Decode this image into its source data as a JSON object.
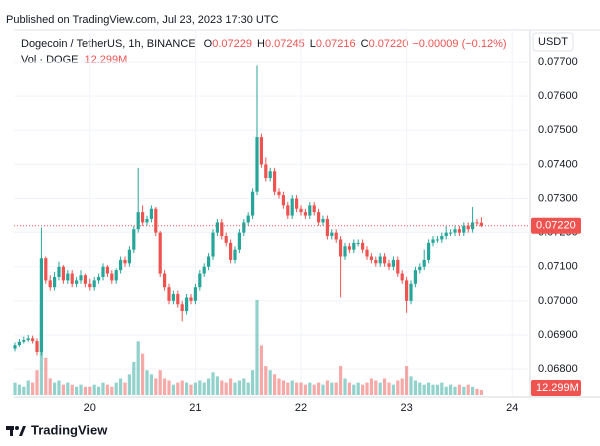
{
  "published": "Published on TradingView.com, Jul 23, 2023 17:30 UTC",
  "brand": "TradingView",
  "chart_data": {
    "type": "candlestick",
    "symbol": "Dogecoin / TetherUS, 1h, BINANCE",
    "ohlc_legend": [
      {
        "label": "O",
        "value": "0.07229"
      },
      {
        "label": "H",
        "value": "0.07245"
      },
      {
        "label": "L",
        "value": "0.07216"
      },
      {
        "label": "C",
        "value": "0.07220"
      }
    ],
    "change": "−0.00009 (−0.12%)",
    "volume_title": "Vol · DOGE",
    "volume_label": "12.299M",
    "currency": "USDT",
    "last_price_label": "0.07220",
    "up_color": "#26a69a",
    "down_color": "#ef5350",
    "open": [
      0.0686,
      0.0687,
      0.0688,
      0.06885,
      0.0689,
      0.06882,
      0.0685,
      0.07125,
      0.0706,
      0.0704,
      0.0707,
      0.071,
      0.0706,
      0.0708,
      0.0705,
      0.0706,
      0.07075,
      0.0705,
      0.0704,
      0.0706,
      0.0707,
      0.071,
      0.0708,
      0.0706,
      0.0709,
      0.0712,
      0.0711,
      0.0715,
      0.0721,
      0.0726,
      0.0723,
      0.0724,
      0.0727,
      0.072,
      0.0708,
      0.0704,
      0.07,
      0.0702,
      0.0699,
      0.0697,
      0.0701,
      0.07,
      0.0704,
      0.0708,
      0.071,
      0.0713,
      0.072,
      0.0723,
      0.0719,
      0.0717,
      0.0712,
      0.0715,
      0.072,
      0.0723,
      0.0725,
      0.0732,
      0.0748,
      0.074,
      0.0736,
      0.0738,
      0.0732,
      0.0731,
      0.0728,
      0.0725,
      0.073,
      0.0727,
      0.0726,
      0.0725,
      0.0728,
      0.0726,
      0.0723,
      0.0724,
      0.0719,
      0.072,
      0.0718,
      0.0713,
      0.0716,
      0.0715,
      0.0717,
      0.0717,
      0.0715,
      0.0713,
      0.0712,
      0.0711,
      0.0713,
      0.0711,
      0.071,
      0.0712,
      0.0708,
      0.0706,
      0.07,
      0.0705,
      0.0709,
      0.071,
      0.0712,
      0.0717,
      0.0718,
      0.0718,
      0.0719,
      0.072,
      0.072,
      0.0721,
      0.072,
      0.0722,
      0.0721,
      0.0723,
      0.07229
    ],
    "high": [
      0.06878,
      0.06888,
      0.06895,
      0.069,
      0.06898,
      0.0689,
      0.07215,
      0.0713,
      0.07075,
      0.07085,
      0.07115,
      0.07105,
      0.0709,
      0.0709,
      0.0707,
      0.0709,
      0.0708,
      0.07065,
      0.0707,
      0.0708,
      0.0711,
      0.07105,
      0.0709,
      0.07095,
      0.0713,
      0.0713,
      0.0716,
      0.0722,
      0.0739,
      0.0728,
      0.0725,
      0.0728,
      0.07275,
      0.07205,
      0.0709,
      0.0705,
      0.0703,
      0.0703,
      0.07,
      0.0702,
      0.0702,
      0.0705,
      0.0709,
      0.0711,
      0.0714,
      0.0721,
      0.0724,
      0.0724,
      0.072,
      0.0718,
      0.0716,
      0.0721,
      0.0724,
      0.0726,
      0.0733,
      0.0769,
      0.0749,
      0.0742,
      0.0739,
      0.0739,
      0.0733,
      0.0732,
      0.0729,
      0.0731,
      0.0731,
      0.0728,
      0.0727,
      0.0729,
      0.0729,
      0.0727,
      0.0725,
      0.0725,
      0.0721,
      0.0721,
      0.0719,
      0.0717,
      0.0717,
      0.0718,
      0.0718,
      0.0718,
      0.0716,
      0.0714,
      0.0713,
      0.0714,
      0.0714,
      0.0712,
      0.0713,
      0.0713,
      0.0709,
      0.0707,
      0.0706,
      0.071,
      0.0711,
      0.0715,
      0.0718,
      0.0719,
      0.0719,
      0.072,
      0.0722,
      0.0721,
      0.0722,
      0.0722,
      0.0723,
      0.0723,
      0.07275,
      0.0724,
      0.07245
    ],
    "low": [
      0.06852,
      0.06865,
      0.06875,
      0.0688,
      0.06875,
      0.0684,
      0.0684,
      0.0705,
      0.0703,
      0.0703,
      0.0706,
      0.0705,
      0.0705,
      0.0704,
      0.0704,
      0.0705,
      0.0704,
      0.0703,
      0.0703,
      0.0705,
      0.0706,
      0.0707,
      0.0705,
      0.0705,
      0.0708,
      0.071,
      0.071,
      0.0714,
      0.072,
      0.0722,
      0.0722,
      0.0723,
      0.0719,
      0.0707,
      0.0703,
      0.0699,
      0.0699,
      0.0698,
      0.0694,
      0.0696,
      0.0699,
      0.0699,
      0.0703,
      0.0707,
      0.0709,
      0.0712,
      0.0719,
      0.0718,
      0.0716,
      0.0711,
      0.0711,
      0.0714,
      0.0719,
      0.0722,
      0.0724,
      0.0731,
      0.0739,
      0.0735,
      0.0735,
      0.0731,
      0.073,
      0.0727,
      0.0724,
      0.0724,
      0.0726,
      0.0725,
      0.0724,
      0.0724,
      0.0725,
      0.0722,
      0.0722,
      0.0718,
      0.0718,
      0.0717,
      0.0701,
      0.0712,
      0.0714,
      0.0714,
      0.0716,
      0.0714,
      0.0712,
      0.0711,
      0.071,
      0.071,
      0.071,
      0.0709,
      0.0709,
      0.0707,
      0.0705,
      0.06965,
      0.0699,
      0.0704,
      0.0708,
      0.0709,
      0.0711,
      0.0716,
      0.0717,
      0.0717,
      0.0718,
      0.0719,
      0.0719,
      0.0719,
      0.0719,
      0.072,
      0.072,
      0.0722,
      0.07216
    ],
    "close": [
      0.0687,
      0.0688,
      0.06885,
      0.0689,
      0.06882,
      0.0685,
      0.07125,
      0.0706,
      0.0704,
      0.0707,
      0.071,
      0.0706,
      0.0708,
      0.0705,
      0.0706,
      0.07075,
      0.0705,
      0.0704,
      0.0706,
      0.0707,
      0.071,
      0.0708,
      0.0706,
      0.0709,
      0.0712,
      0.0711,
      0.0715,
      0.0721,
      0.0726,
      0.0723,
      0.0724,
      0.0727,
      0.072,
      0.0708,
      0.0704,
      0.07,
      0.0702,
      0.0699,
      0.0697,
      0.0701,
      0.07,
      0.0704,
      0.0708,
      0.071,
      0.0713,
      0.072,
      0.0723,
      0.0719,
      0.0717,
      0.0712,
      0.0715,
      0.072,
      0.0723,
      0.0725,
      0.0732,
      0.0748,
      0.074,
      0.0736,
      0.0738,
      0.0732,
      0.0731,
      0.0728,
      0.0725,
      0.073,
      0.0727,
      0.0726,
      0.0725,
      0.0728,
      0.0726,
      0.0723,
      0.0724,
      0.0719,
      0.072,
      0.0718,
      0.0713,
      0.0716,
      0.0715,
      0.0717,
      0.0717,
      0.0715,
      0.0713,
      0.0712,
      0.0711,
      0.0713,
      0.0711,
      0.071,
      0.0712,
      0.0708,
      0.0706,
      0.07,
      0.0705,
      0.0709,
      0.071,
      0.0712,
      0.0717,
      0.0718,
      0.0718,
      0.0719,
      0.072,
      0.072,
      0.0721,
      0.072,
      0.0722,
      0.0721,
      0.0723,
      0.07229,
      0.0722
    ],
    "volume": [
      30,
      25,
      20,
      35,
      30,
      60,
      220,
      90,
      40,
      30,
      35,
      25,
      30,
      25,
      20,
      25,
      20,
      20,
      25,
      20,
      30,
      25,
      20,
      30,
      40,
      30,
      50,
      80,
      130,
      100,
      60,
      50,
      40,
      60,
      40,
      35,
      25,
      30,
      35,
      30,
      25,
      30,
      35,
      30,
      40,
      55,
      45,
      35,
      30,
      40,
      30,
      35,
      40,
      30,
      60,
      230,
      120,
      70,
      60,
      50,
      40,
      35,
      30,
      35,
      30,
      30,
      25,
      30,
      25,
      30,
      25,
      35,
      30,
      30,
      70,
      40,
      30,
      25,
      30,
      25,
      30,
      40,
      35,
      30,
      40,
      30,
      25,
      35,
      40,
      70,
      45,
      35,
      30,
      25,
      30,
      25,
      25,
      30,
      20,
      25,
      20,
      25,
      20,
      25,
      20,
      15,
      12.299
    ],
    "ylim": [
      0.06724,
      0.07794
    ],
    "yticks": [
      {
        "value": 0.068,
        "label": "0.06800"
      },
      {
        "value": 0.069,
        "label": "0.06900"
      },
      {
        "value": 0.07,
        "label": "0.07000"
      },
      {
        "value": 0.071,
        "label": "0.07100"
      },
      {
        "value": 0.072,
        "label": "0.07200"
      },
      {
        "value": 0.073,
        "label": "0.07300"
      },
      {
        "value": 0.074,
        "label": "0.07400"
      },
      {
        "value": 0.075,
        "label": "0.07500"
      },
      {
        "value": 0.076,
        "label": "0.07600"
      },
      {
        "value": 0.077,
        "label": "0.07700"
      }
    ],
    "xticks": [
      {
        "value": 17,
        "label": "20"
      },
      {
        "value": 41,
        "label": "21"
      },
      {
        "value": 65,
        "label": "22"
      },
      {
        "value": 89,
        "label": "23"
      },
      {
        "value": 113,
        "label": "24"
      }
    ],
    "grid": true
  }
}
